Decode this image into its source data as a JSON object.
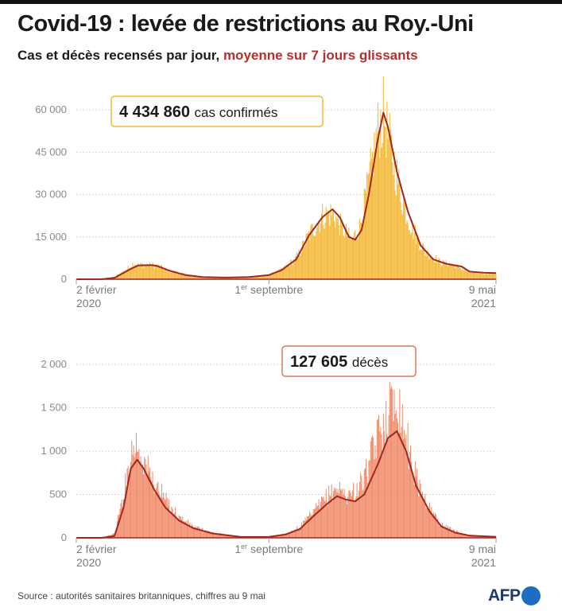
{
  "title": "Covid-19 : levée de restrictions au Roy.-Uni",
  "subtitle": {
    "main": "Cas et décès recensés par jour,",
    "accent": "moyenne sur 7 jours glissants"
  },
  "source": "Source : autorités sanitaires britanniques, chiffres au 9 mai",
  "logo": "AFP",
  "chart_data": [
    {
      "type": "bar",
      "bar_color": "#f3b733",
      "line_color": "#a2271f",
      "callout": {
        "value": "4 434 860",
        "label": "cas confirmés",
        "border_color": "#f3b733"
      },
      "ylim": [
        0,
        60000
      ],
      "yticks": [
        {
          "value": 0,
          "label": "0"
        },
        {
          "value": 15000,
          "label": "15 000"
        },
        {
          "value": 30000,
          "label": "30 000"
        },
        {
          "value": 45000,
          "label": "45 000"
        },
        {
          "value": 60000,
          "label": "60 000"
        }
      ],
      "xlim": [
        "2020-02-02",
        "2021-05-09"
      ],
      "xticks": [
        {
          "date": "2020-02-02",
          "line1": "2 février",
          "line2": "2020",
          "anchor": "start"
        },
        {
          "date": "2020-09-01",
          "line1": "1",
          "sup": "er",
          "line1b": " septembre",
          "line2": "",
          "anchor": "middle"
        },
        {
          "date": "2021-05-09",
          "line1": "9 mai",
          "line2": "2021",
          "anchor": "end"
        }
      ],
      "daily_outline": [
        [
          "2020-02-02",
          0
        ],
        [
          "2020-03-01",
          30
        ],
        [
          "2020-03-15",
          800
        ],
        [
          "2020-04-01",
          4500
        ],
        [
          "2020-04-05",
          6000
        ],
        [
          "2020-04-10",
          5200
        ],
        [
          "2020-04-20",
          5300
        ],
        [
          "2020-05-01",
          5000
        ],
        [
          "2020-05-15",
          3000
        ],
        [
          "2020-06-01",
          1800
        ],
        [
          "2020-06-20",
          1000
        ],
        [
          "2020-07-15",
          650
        ],
        [
          "2020-08-10",
          900
        ],
        [
          "2020-09-01",
          1500
        ],
        [
          "2020-09-15",
          3500
        ],
        [
          "2020-10-01",
          7500
        ],
        [
          "2020-10-15",
          16000
        ],
        [
          "2020-10-30",
          23000
        ],
        [
          "2020-11-10",
          24000
        ],
        [
          "2020-11-20",
          19000
        ],
        [
          "2020-12-01",
          14000
        ],
        [
          "2020-12-10",
          19000
        ],
        [
          "2020-12-20",
          35000
        ],
        [
          "2020-12-29",
          53000
        ],
        [
          "2021-01-05",
          60000
        ],
        [
          "2021-01-15",
          45000
        ],
        [
          "2021-01-25",
          30000
        ],
        [
          "2021-02-05",
          19000
        ],
        [
          "2021-02-20",
          10000
        ],
        [
          "2021-03-10",
          6000
        ],
        [
          "2021-03-25",
          5000
        ],
        [
          "2021-04-10",
          2500
        ],
        [
          "2021-04-25",
          2200
        ],
        [
          "2021-05-09",
          2200
        ]
      ],
      "moving_average": [
        [
          "2020-02-02",
          0
        ],
        [
          "2020-03-01",
          20
        ],
        [
          "2020-03-15",
          500
        ],
        [
          "2020-04-01",
          3500
        ],
        [
          "2020-04-10",
          4900
        ],
        [
          "2020-04-25",
          5000
        ],
        [
          "2020-05-01",
          4700
        ],
        [
          "2020-05-15",
          3000
        ],
        [
          "2020-06-01",
          1500
        ],
        [
          "2020-06-20",
          800
        ],
        [
          "2020-07-15",
          600
        ],
        [
          "2020-08-10",
          800
        ],
        [
          "2020-09-01",
          1500
        ],
        [
          "2020-09-15",
          3200
        ],
        [
          "2020-10-01",
          7000
        ],
        [
          "2020-10-15",
          15500
        ],
        [
          "2020-10-30",
          22000
        ],
        [
          "2020-11-10",
          24800
        ],
        [
          "2020-11-18",
          22000
        ],
        [
          "2020-11-28",
          15000
        ],
        [
          "2020-12-05",
          14000
        ],
        [
          "2020-12-12",
          17500
        ],
        [
          "2020-12-20",
          30000
        ],
        [
          "2020-12-29",
          48000
        ],
        [
          "2021-01-05",
          59000
        ],
        [
          "2021-01-10",
          54000
        ],
        [
          "2021-01-20",
          38000
        ],
        [
          "2021-02-01",
          24000
        ],
        [
          "2021-02-15",
          12000
        ],
        [
          "2021-03-01",
          7000
        ],
        [
          "2021-03-15",
          5500
        ],
        [
          "2021-04-01",
          4500
        ],
        [
          "2021-04-10",
          2700
        ],
        [
          "2021-04-25",
          2300
        ],
        [
          "2021-05-09",
          2200
        ]
      ]
    },
    {
      "type": "bar",
      "bar_color": "#ef8968",
      "line_color": "#a2271f",
      "callout": {
        "value": "127 605",
        "label": "décès",
        "border_color": "#d97a5c"
      },
      "ylim": [
        0,
        2000
      ],
      "yticks": [
        {
          "value": 0,
          "label": "0"
        },
        {
          "value": 500,
          "label": "500"
        },
        {
          "value": 1000,
          "label": "1 000"
        },
        {
          "value": 1500,
          "label": "1 500"
        },
        {
          "value": 2000,
          "label": "2 000"
        }
      ],
      "xlim": [
        "2020-02-02",
        "2021-05-09"
      ],
      "xticks": [
        {
          "date": "2020-02-02",
          "line1": "2 février",
          "line2": "2020",
          "anchor": "start"
        },
        {
          "date": "2020-09-01",
          "line1": "1",
          "sup": "er",
          "line1b": " septembre",
          "line2": "",
          "anchor": "middle"
        },
        {
          "date": "2021-05-09",
          "line1": "9 mai",
          "line2": "2021",
          "anchor": "end"
        }
      ],
      "daily_outline": [
        [
          "2020-02-02",
          0
        ],
        [
          "2020-03-01",
          0
        ],
        [
          "2020-03-15",
          50
        ],
        [
          "2020-03-25",
          500
        ],
        [
          "2020-04-02",
          1000
        ],
        [
          "2020-04-08",
          1120
        ],
        [
          "2020-04-15",
          950
        ],
        [
          "2020-04-25",
          700
        ],
        [
          "2020-05-10",
          450
        ],
        [
          "2020-05-25",
          250
        ],
        [
          "2020-06-10",
          130
        ],
        [
          "2020-07-01",
          60
        ],
        [
          "2020-08-01",
          15
        ],
        [
          "2020-09-01",
          10
        ],
        [
          "2020-09-20",
          50
        ],
        [
          "2020-10-05",
          130
        ],
        [
          "2020-10-20",
          300
        ],
        [
          "2020-11-05",
          500
        ],
        [
          "2020-11-15",
          600
        ],
        [
          "2020-11-25",
          500
        ],
        [
          "2020-12-05",
          550
        ],
        [
          "2020-12-15",
          700
        ],
        [
          "2020-12-30",
          1200
        ],
        [
          "2021-01-10",
          1500
        ],
        [
          "2021-01-20",
          1700
        ],
        [
          "2021-01-30",
          1200
        ],
        [
          "2021-02-10",
          700
        ],
        [
          "2021-02-25",
          350
        ],
        [
          "2021-03-10",
          150
        ],
        [
          "2021-03-25",
          80
        ],
        [
          "2021-04-10",
          30
        ],
        [
          "2021-05-09",
          15
        ]
      ],
      "moving_average": [
        [
          "2020-02-02",
          0
        ],
        [
          "2020-03-01",
          0
        ],
        [
          "2020-03-15",
          20
        ],
        [
          "2020-03-25",
          350
        ],
        [
          "2020-04-02",
          800
        ],
        [
          "2020-04-09",
          900
        ],
        [
          "2020-04-16",
          800
        ],
        [
          "2020-04-28",
          550
        ],
        [
          "2020-05-10",
          350
        ],
        [
          "2020-05-25",
          200
        ],
        [
          "2020-06-10",
          110
        ],
        [
          "2020-07-01",
          50
        ],
        [
          "2020-08-01",
          10
        ],
        [
          "2020-09-01",
          10
        ],
        [
          "2020-09-20",
          40
        ],
        [
          "2020-10-05",
          100
        ],
        [
          "2020-10-20",
          250
        ],
        [
          "2020-11-05",
          400
        ],
        [
          "2020-11-15",
          480
        ],
        [
          "2020-11-25",
          440
        ],
        [
          "2020-12-05",
          420
        ],
        [
          "2020-12-15",
          500
        ],
        [
          "2020-12-30",
          850
        ],
        [
          "2021-01-10",
          1150
        ],
        [
          "2021-01-20",
          1230
        ],
        [
          "2021-01-30",
          1000
        ],
        [
          "2021-02-10",
          600
        ],
        [
          "2021-02-25",
          300
        ],
        [
          "2021-03-10",
          130
        ],
        [
          "2021-03-25",
          60
        ],
        [
          "2021-04-10",
          25
        ],
        [
          "2021-05-09",
          12
        ]
      ]
    }
  ]
}
